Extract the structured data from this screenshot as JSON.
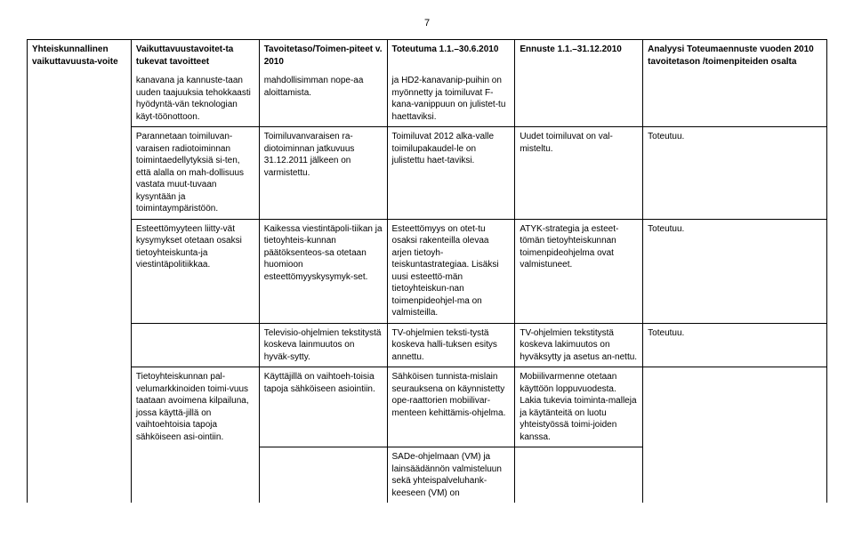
{
  "page_number": "7",
  "columns": [
    "Yhteiskunnallinen vaikuttavuusta-voite",
    "Vaikuttavuustavoitet-ta tukevat tavoitteet",
    "Tavoitetaso/Toimen-piteet v. 2010",
    "Toteutuma 1.1.–30.6.2010",
    "Ennuste 1.1.–31.12.2010",
    "Analyysi Toteumaennuste vuoden 2010 tavoitetason /toimenpiteiden osalta"
  ],
  "rows": [
    {
      "c1": "",
      "c2": "kanavana ja kannuste-taan uuden taajuuksia tehokkaasti hyödyntä-vän teknologian käyt-töönottoon.",
      "c3": "mahdollisimman nope-aa aloittamista.",
      "c4": "ja HD2-kanavanip-puihin on myönnetty ja toimiluvat F-kana-vanippuun on julistet-tu haettaviksi.",
      "c5": "",
      "c6": ""
    },
    {
      "c1": "",
      "c2": "Parannetaan toimiluvan-varaisen radiotoiminnan toimintaedellytyksiä si-ten, että alalla on mah-dollisuus vastata muut-tuvaan kysyntään ja toimintaympäristöön.",
      "c3": "Toimiluvanvaraisen ra-diotoiminnan jatkuvuus 31.12.2011 jälkeen on varmistettu.",
      "c4": "Toimiluvat 2012 alka-valle toimilupakaudel-le on julistettu haet-taviksi.",
      "c5": "Uudet toimiluvat on val-misteltu.",
      "c6": "Toteutuu."
    },
    {
      "c1": "",
      "c2": "Esteettömyyteen liitty-vät kysymykset otetaan osaksi tietoyhteiskunta-ja viestintäpolitiikkaa.",
      "c3": "Kaikessa viestintäpoli-tiikan ja tietoyhteis-kunnan päätöksenteos-sa otetaan huomioon esteettömyyskysymyk-set.",
      "c4": "Esteettömyys on otet-tu osaksi rakenteilla olevaa arjen tietoyh-teiskuntastrategiaa. Lisäksi uusi esteettö-män tietoyhteiskun-nan toimenpideohjel-ma on valmisteilla.",
      "c5": "ATYK-strategia ja esteet-tömän tietoyhteiskunnan toimenpideohjelma ovat valmistuneet.",
      "c6": "Toteutuu."
    },
    {
      "c1": "",
      "c2": "",
      "c3": "Televisio-ohjelmien tekstitystä koskeva lainmuutos on hyväk-sytty.",
      "c4": "TV-ohjelmien teksti-tystä koskeva halli-tuksen esitys annettu.",
      "c5": "TV-ohjelmien tekstitystä koskeva lakimuutos on hyväksytty ja asetus an-nettu.",
      "c6": "Toteutuu."
    },
    {
      "c1": "",
      "c2": "Tietoyhteiskunnan pal-velumarkkinoiden toimi-vuus taataan avoimena kilpailuna, jossa käyttä-jillä on vaihtoehtoisia tapoja sähköiseen asi-ointiin.",
      "c3": "Käyttäjillä on vaihtoeh-toisia tapoja sähköiseen asiointiin.",
      "c4": "Sähköisen tunnista-mislain seurauksena on käynnistetty ope-raattorien mobiilivar-menteen kehittämis-ohjelma.",
      "c5": "Mobiilivarmenne otetaan käyttöön loppuvuodesta. Lakia tukevia toiminta-malleja ja käytänteitä on luotu yhteistyössä toimi-joiden kanssa.",
      "c6": ""
    },
    {
      "c1": "",
      "c2": "",
      "c3": "",
      "c4": "SADe-ohjelmaan (VM) ja lainsäädännön valmisteluun sekä yhteispalveluhank-keeseen (VM) on",
      "c5": "",
      "c6": ""
    }
  ]
}
